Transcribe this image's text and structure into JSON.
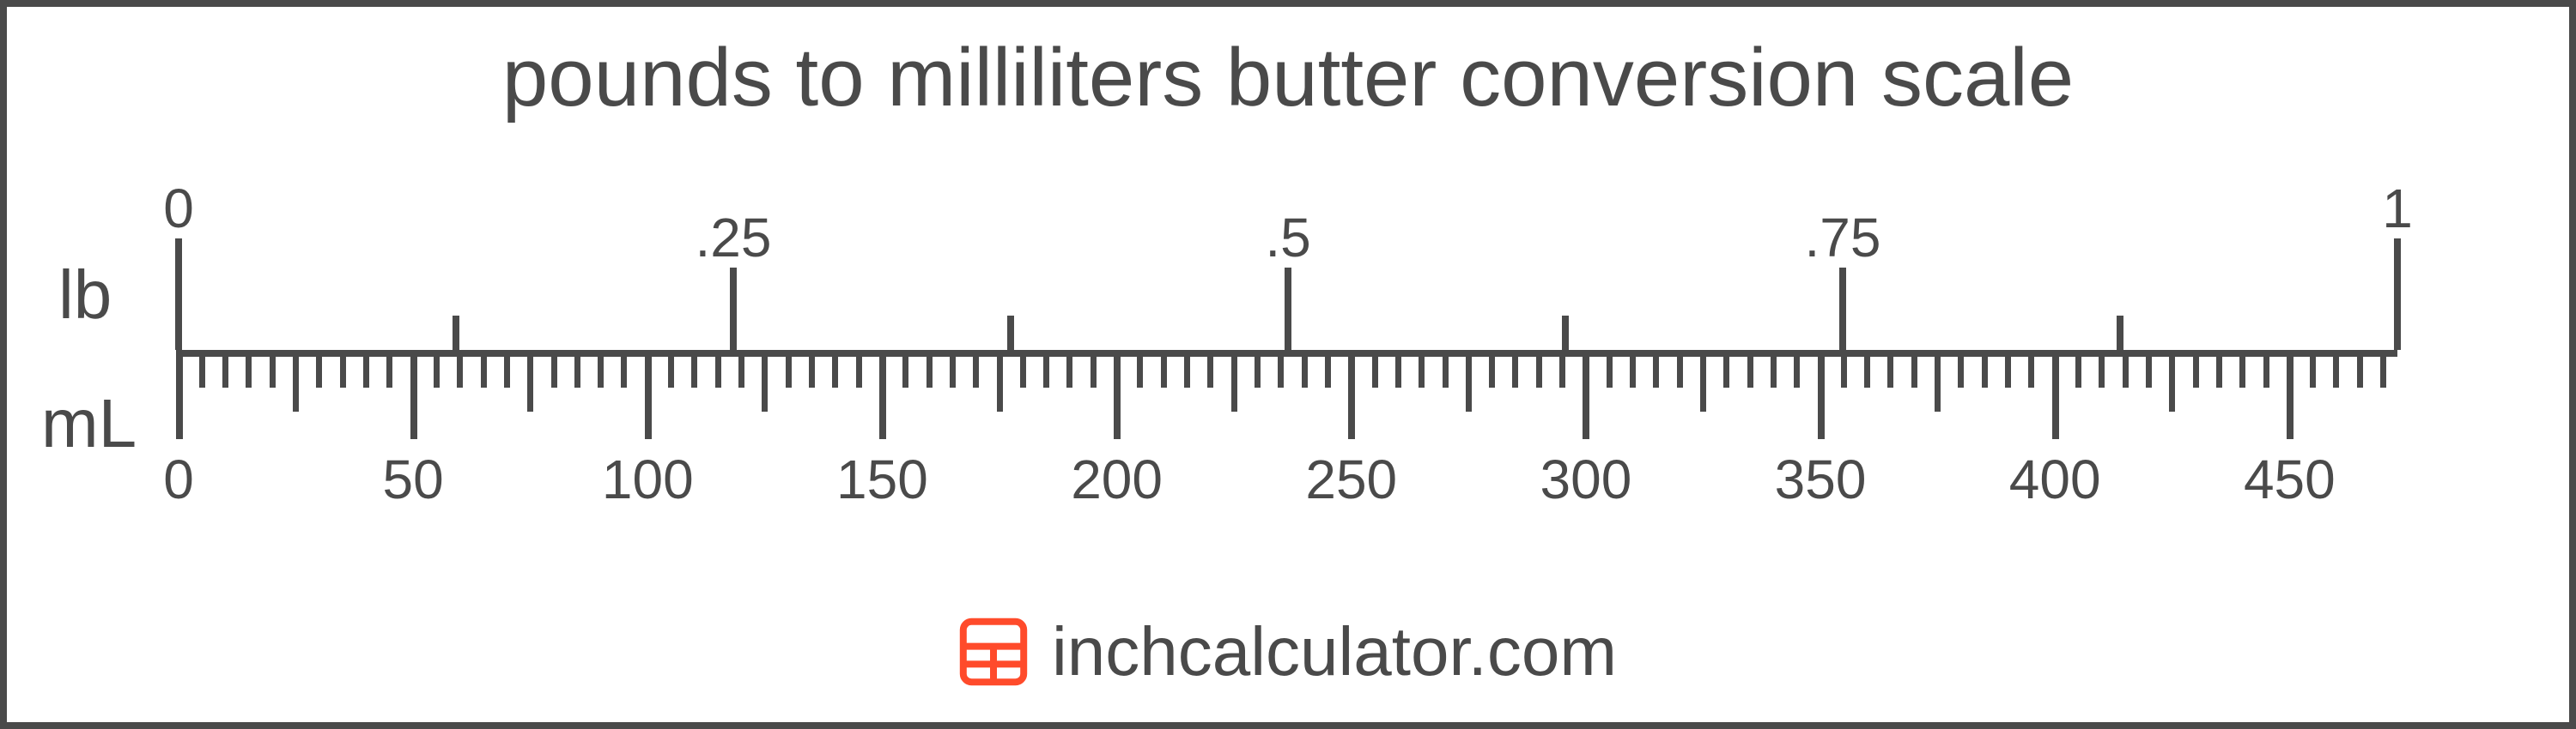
{
  "title": "pounds to milliliters butter conversion scale",
  "units": {
    "top": "lb",
    "bottom": "mL"
  },
  "footer_text": "inchcalculator.com",
  "colors": {
    "stroke": "#4a4a4a",
    "logo": "#ff4b2b",
    "background": "#ffffff"
  },
  "tick_style": {
    "axis_width": 8,
    "tick_width_major": 8,
    "tick_width_minor": 7,
    "lb_major_len": 96,
    "lb_end_len": 130,
    "lb_minor_len": 40,
    "ml_major_len": 96,
    "ml_mid_len": 64,
    "ml_minor_len": 36,
    "label_fontsize": 64
  },
  "scale": {
    "ml_min": 0,
    "ml_max": 473,
    "ml_major_step": 50,
    "ml_minor_step": 5,
    "ml_labels": [
      0,
      50,
      100,
      150,
      200,
      250,
      300,
      350,
      400,
      450
    ],
    "lb_ticks": [
      {
        "lb": 0,
        "label": "0",
        "major": true,
        "end": true
      },
      {
        "lb": 0.125,
        "label": null,
        "major": false,
        "end": false
      },
      {
        "lb": 0.25,
        "label": ".25",
        "major": true,
        "end": false
      },
      {
        "lb": 0.375,
        "label": null,
        "major": false,
        "end": false
      },
      {
        "lb": 0.5,
        "label": ".5",
        "major": true,
        "end": false
      },
      {
        "lb": 0.625,
        "label": null,
        "major": false,
        "end": false
      },
      {
        "lb": 0.75,
        "label": ".75",
        "major": true,
        "end": false
      },
      {
        "lb": 0.875,
        "label": null,
        "major": false,
        "end": false
      },
      {
        "lb": 1,
        "label": "1",
        "major": true,
        "end": true
      }
    ],
    "ml_per_lb": 473
  }
}
